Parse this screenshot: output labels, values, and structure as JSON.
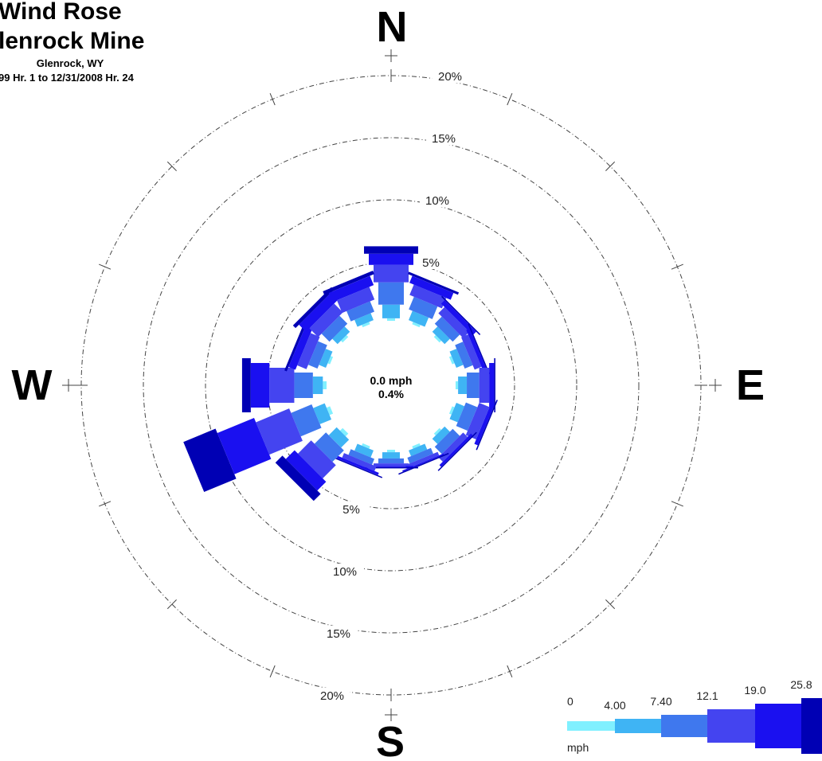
{
  "chart_data": {
    "type": "wind-rose",
    "title": "Wind Rose",
    "subtitle": "lenrock Mine",
    "location": "Glenrock, WY",
    "period": "99 Hr. 1 to 12/31/2008 Hr. 24",
    "compass": [
      "N",
      "E",
      "S",
      "W"
    ],
    "rings": [
      {
        "value": 5,
        "label": "5%"
      },
      {
        "value": 10,
        "label": "10%"
      },
      {
        "value": 15,
        "label": "15%"
      },
      {
        "value": 20,
        "label": "20%"
      }
    ],
    "calm": {
      "speed": "0.0 mph",
      "pct": "0.4%"
    },
    "legend": {
      "unit": "mph",
      "breaks": [
        "0",
        "4.00",
        "7.40",
        "12.1",
        "19.0",
        "25.8"
      ],
      "colors": [
        "#80f0ff",
        "#3fb4f4",
        "#3f78ee",
        "#4444f0",
        "#1a10f0",
        "#0000b4"
      ]
    },
    "directions": [
      "N",
      "NNE",
      "NE",
      "ENE",
      "E",
      "ESE",
      "SE",
      "SSE",
      "S",
      "SSW",
      "SW",
      "WSW",
      "W",
      "WNW",
      "NW",
      "NNW"
    ],
    "series": [
      {
        "direction": "N",
        "values": [
          0.2,
          1.1,
          1.8,
          1.4,
          0.9,
          0.6
        ]
      },
      {
        "direction": "NNE",
        "values": [
          0.2,
          0.8,
          1.1,
          0.9,
          0.6,
          0.2
        ]
      },
      {
        "direction": "NE",
        "values": [
          0.2,
          0.6,
          0.8,
          0.7,
          0.4,
          0.1
        ]
      },
      {
        "direction": "ENE",
        "values": [
          0.2,
          0.6,
          0.7,
          0.6,
          0.3,
          0.1
        ]
      },
      {
        "direction": "E",
        "values": [
          0.2,
          0.7,
          1.0,
          0.8,
          0.4,
          0.1
        ]
      },
      {
        "direction": "ESE",
        "values": [
          0.2,
          0.7,
          1.0,
          0.9,
          0.3,
          0.1
        ]
      },
      {
        "direction": "SE",
        "values": [
          0.2,
          0.6,
          0.8,
          0.5,
          0.2,
          0.1
        ]
      },
      {
        "direction": "SSE",
        "values": [
          0.2,
          0.5,
          0.5,
          0.3,
          0.1,
          0.1
        ]
      },
      {
        "direction": "S",
        "values": [
          0.2,
          0.5,
          0.4,
          0.2,
          0.1,
          0.1
        ]
      },
      {
        "direction": "SSW",
        "values": [
          0.2,
          0.6,
          0.5,
          0.4,
          0.2,
          0.1
        ]
      },
      {
        "direction": "SW",
        "values": [
          0.3,
          0.9,
          1.3,
          1.5,
          1.0,
          0.8
        ]
      },
      {
        "direction": "WSW",
        "values": [
          0.3,
          1.0,
          1.8,
          2.9,
          3.2,
          2.8
        ]
      },
      {
        "direction": "W",
        "values": [
          0.3,
          0.8,
          1.5,
          2.0,
          1.5,
          0.7
        ]
      },
      {
        "direction": "WNW",
        "values": [
          0.2,
          0.6,
          0.8,
          0.8,
          0.6,
          0.2
        ]
      },
      {
        "direction": "NW",
        "values": [
          0.2,
          0.6,
          0.9,
          1.0,
          0.8,
          0.3
        ]
      },
      {
        "direction": "NNW",
        "values": [
          0.2,
          0.6,
          0.9,
          1.1,
          0.8,
          0.3
        ]
      }
    ]
  }
}
